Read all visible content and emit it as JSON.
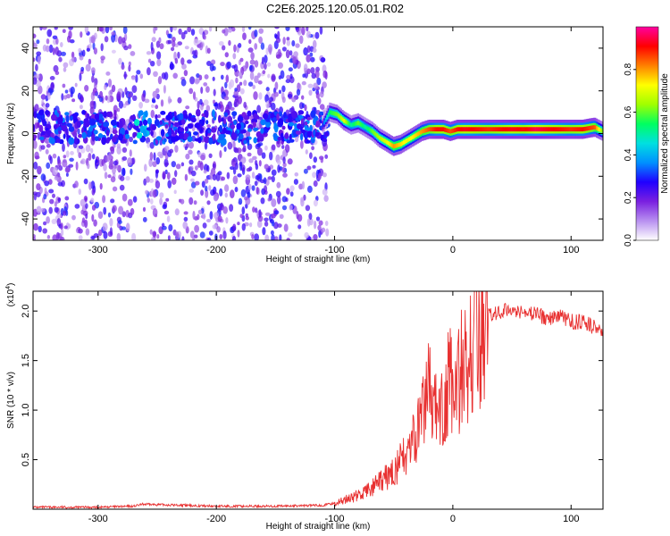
{
  "title": "C2E6.2025.120.05.01.R02",
  "colors": {
    "snr_line": "#e83030",
    "frame": "#000000"
  },
  "chart_data": [
    {
      "type": "heatmap",
      "xlabel": "Height of straight line (km)",
      "ylabel": "Frequency (Hz)",
      "xlim": [
        -355,
        127
      ],
      "ylim": [
        -50,
        50
      ],
      "x_ticks": [
        -300,
        -200,
        -100,
        0,
        100
      ],
      "y_ticks": [
        -40,
        -20,
        0,
        20,
        40
      ],
      "colorbar": {
        "label": "Normalized spectral amplitude",
        "range": [
          0,
          1
        ],
        "ticks": [
          "0.0",
          "0.2",
          "0.4",
          "0.6",
          "0.8"
        ],
        "tick_values": [
          0.0,
          0.2,
          0.4,
          0.6,
          0.8
        ],
        "colormap": [
          "#ffffff",
          "#b890f0",
          "#7a20e0",
          "#2000ff",
          "#0090ff",
          "#00e0e0",
          "#00ff60",
          "#a0ff00",
          "#ffff00",
          "#ff8000",
          "#ff0000",
          "#ff00a0"
        ]
      },
      "carrier_track": {
        "x": [
          -110,
          -104,
          -98,
          -92,
          -86,
          -80,
          -74,
          -68,
          -62,
          -56,
          -50,
          -44,
          -38,
          -32,
          -26,
          -20,
          -14,
          -8,
          -2,
          4,
          10,
          20,
          30,
          40,
          50,
          60,
          70,
          80,
          90,
          100,
          110,
          120,
          127
        ],
        "freq": [
          4,
          10,
          9,
          6,
          4,
          5,
          3,
          1,
          -2,
          -4,
          -6,
          -5,
          -3,
          -1,
          1,
          2,
          2,
          2,
          1,
          2,
          2,
          2,
          2,
          2,
          2,
          2,
          2,
          2,
          2,
          2,
          2,
          3,
          1
        ],
        "amplitude": [
          0.3,
          0.55,
          0.6,
          0.7,
          0.5,
          0.6,
          0.5,
          0.6,
          0.65,
          0.7,
          0.8,
          0.75,
          0.7,
          0.75,
          0.8,
          0.85,
          0.9,
          0.9,
          0.85,
          0.9,
          0.92,
          0.9,
          0.88,
          0.9,
          0.92,
          0.9,
          0.95,
          0.92,
          0.9,
          0.88,
          0.9,
          0.85,
          0.6
        ]
      },
      "noise_region": {
        "x_range": [
          -355,
          -105
        ],
        "freq_band_center": 3,
        "peak_at": -262,
        "peak_amplitude": 0.5
      }
    },
    {
      "type": "line",
      "xlabel": "Height of straight line (km)",
      "ylabel": "SNR (10 * v/v)",
      "y_multiplier": "(x10",
      "y_multiplier_exp": "4",
      "xlim": [
        -355,
        127
      ],
      "ylim": [
        0,
        2.2
      ],
      "x_ticks": [
        -300,
        -200,
        -100,
        0,
        100
      ],
      "y_ticks": [
        "0.5",
        "1.0",
        "1.5",
        "2.0"
      ],
      "y_tick_values": [
        0.5,
        1.0,
        1.5,
        2.0
      ],
      "series": [
        {
          "x": [
            -355,
            -300,
            -270,
            -262,
            -200,
            -150,
            -110,
            -100,
            -90,
            -80,
            -70,
            -60,
            -50,
            -40,
            -30,
            -25,
            -20,
            -15,
            -10,
            -5,
            0,
            5,
            10,
            15,
            20,
            25,
            30,
            40,
            50,
            60,
            70,
            80,
            90,
            100,
            110,
            120,
            127
          ],
          "y": [
            0.02,
            0.02,
            0.03,
            0.05,
            0.03,
            0.03,
            0.04,
            0.06,
            0.1,
            0.14,
            0.2,
            0.28,
            0.38,
            0.55,
            0.75,
            1.0,
            1.2,
            1.0,
            1.1,
            1.25,
            1.3,
            1.35,
            1.45,
            1.6,
            1.75,
            1.85,
            1.95,
            2.0,
            2.03,
            1.98,
            1.97,
            1.93,
            1.95,
            1.9,
            1.88,
            1.84,
            1.8
          ]
        }
      ]
    }
  ]
}
